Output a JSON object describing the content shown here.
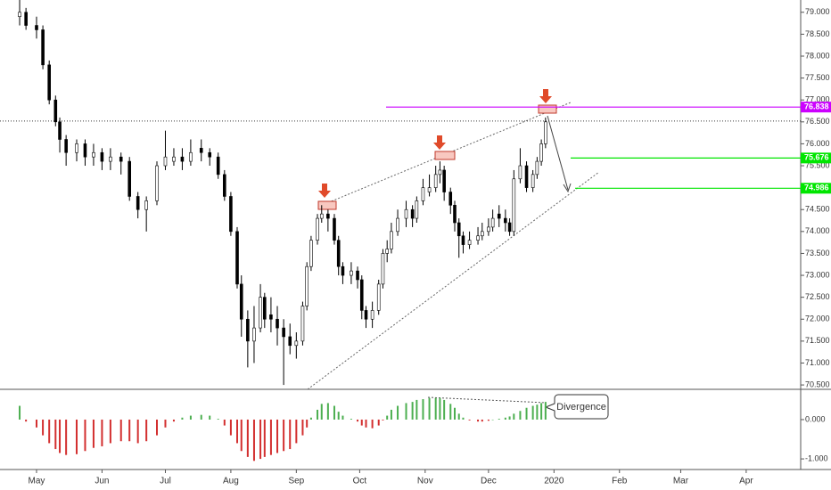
{
  "chart_data": [
    {
      "type": "candlestick",
      "x": [
        -8,
        -5,
        0,
        3,
        6,
        9,
        11,
        14,
        19,
        23,
        27,
        31,
        35,
        40,
        44,
        48,
        52,
        57,
        61,
        65,
        69,
        73,
        78,
        82,
        86,
        89,
        92,
        95,
        97,
        100,
        103,
        106,
        108,
        111,
        114,
        117,
        120,
        123,
        126,
        128,
        130,
        133,
        135,
        138,
        141,
        143,
        145,
        149,
        152,
        154,
        156,
        159,
        162,
        164,
        166,
        168,
        171,
        175,
        178,
        180,
        183,
        186,
        189,
        191,
        193,
        196,
        198,
        200,
        202,
        205,
        209,
        211,
        214,
        216,
        219,
        222,
        224,
        226,
        229,
        232,
        235,
        237,
        239,
        241
      ],
      "open": [
        78.9,
        79.0,
        78.7,
        78.6,
        77.8,
        77.0,
        76.5,
        76.1,
        75.8,
        76.0,
        75.7,
        75.8,
        75.6,
        75.7,
        75.6,
        74.8,
        74.5,
        74.7,
        75.5,
        75.6,
        75.7,
        75.6,
        75.9,
        75.8,
        75.7,
        75.3,
        74.8,
        74.0,
        72.8,
        72.0,
        71.5,
        71.8,
        72.5,
        72.1,
        72.0,
        71.8,
        71.6,
        71.4,
        71.5,
        72.3,
        73.2,
        73.8,
        74.3,
        74.4,
        74.3,
        73.8,
        73.2,
        73.0,
        73.1,
        72.9,
        72.2,
        72.0,
        72.2,
        72.8,
        73.5,
        73.6,
        74.0,
        74.3,
        74.5,
        74.3,
        74.7,
        74.9,
        75.0,
        75.3,
        75.4,
        74.9,
        74.6,
        74.2,
        73.9,
        73.7,
        73.8,
        73.9,
        74.0,
        74.1,
        74.4,
        74.3,
        74.2,
        74.0,
        75.2,
        75.5,
        75.0,
        75.3,
        75.6,
        76.0
      ],
      "high": [
        79.28,
        79.1,
        78.9,
        78.7,
        77.9,
        77.1,
        76.6,
        76.2,
        76.1,
        76.1,
        76.0,
        75.9,
        75.9,
        75.8,
        75.7,
        74.9,
        74.8,
        75.6,
        76.3,
        75.9,
        75.9,
        76.1,
        76.1,
        75.9,
        75.8,
        75.4,
        74.9,
        74.1,
        73.0,
        72.2,
        72.3,
        72.8,
        72.6,
        72.5,
        72.3,
        72.0,
        71.9,
        71.7,
        72.4,
        73.3,
        73.9,
        74.4,
        74.6,
        74.5,
        74.4,
        73.9,
        73.3,
        73.3,
        73.2,
        73.0,
        72.3,
        72.4,
        72.9,
        73.6,
        73.8,
        74.2,
        74.5,
        74.7,
        74.6,
        74.8,
        75.2,
        75.3,
        75.5,
        75.6,
        75.5,
        75.0,
        74.7,
        74.3,
        74.0,
        74.0,
        74.1,
        74.2,
        74.3,
        74.5,
        74.6,
        74.5,
        74.3,
        75.4,
        75.9,
        75.6,
        75.4,
        75.7,
        76.1,
        76.6
      ],
      "low": [
        78.7,
        78.6,
        78.4,
        77.7,
        76.9,
        76.4,
        75.8,
        75.5,
        75.6,
        75.5,
        75.5,
        75.4,
        75.4,
        75.3,
        74.7,
        74.3,
        74.0,
        74.6,
        75.4,
        75.5,
        75.4,
        75.5,
        75.6,
        75.5,
        75.2,
        74.7,
        73.9,
        72.7,
        71.6,
        70.9,
        71.0,
        71.7,
        71.8,
        71.7,
        71.4,
        70.5,
        71.2,
        71.1,
        71.4,
        72.2,
        73.1,
        73.7,
        74.2,
        74.0,
        73.7,
        73.0,
        72.8,
        72.8,
        72.7,
        72.0,
        71.8,
        71.8,
        72.1,
        72.7,
        73.3,
        73.5,
        73.9,
        74.1,
        74.1,
        74.2,
        74.6,
        74.8,
        74.9,
        75.1,
        74.7,
        74.4,
        74.0,
        73.4,
        73.5,
        73.6,
        73.7,
        73.8,
        73.9,
        74.0,
        74.1,
        74.0,
        73.9,
        73.9,
        75.1,
        74.9,
        74.9,
        75.2,
        75.5,
        75.9
      ],
      "close": [
        79.0,
        78.7,
        78.6,
        77.8,
        77.0,
        76.5,
        76.1,
        75.8,
        76.0,
        75.7,
        75.8,
        75.6,
        75.7,
        75.6,
        74.8,
        74.5,
        74.7,
        75.5,
        75.7,
        75.7,
        75.6,
        75.8,
        75.8,
        75.7,
        75.3,
        74.8,
        74.0,
        72.8,
        72.0,
        71.5,
        71.8,
        72.5,
        72.0,
        72.0,
        71.8,
        71.6,
        71.4,
        71.5,
        72.3,
        73.2,
        73.8,
        74.3,
        74.4,
        74.3,
        73.8,
        73.2,
        73.0,
        73.1,
        72.9,
        72.2,
        72.0,
        72.2,
        72.8,
        73.5,
        73.6,
        74.0,
        74.3,
        74.5,
        74.3,
        74.7,
        75.0,
        75.0,
        75.3,
        75.4,
        74.9,
        74.6,
        74.2,
        73.9,
        73.7,
        73.8,
        73.9,
        74.0,
        74.1,
        74.3,
        74.3,
        74.2,
        74.0,
        75.2,
        75.5,
        75.0,
        75.3,
        75.6,
        76.0,
        76.5
      ],
      "xlim": [
        -17.3,
        361.8
      ],
      "xticks": [
        {
          "value": 0,
          "label": "May"
        },
        {
          "value": 31,
          "label": "Jun"
        },
        {
          "value": 61,
          "label": "Jul"
        },
        {
          "value": 92,
          "label": "Aug"
        },
        {
          "value": 123,
          "label": "Sep"
        },
        {
          "value": 153,
          "label": "Oct"
        },
        {
          "value": 184,
          "label": "Nov"
        },
        {
          "value": 214,
          "label": "Dec"
        },
        {
          "value": 245,
          "label": "2020"
        },
        {
          "value": 276,
          "label": "Feb"
        },
        {
          "value": 305,
          "label": "Mar"
        },
        {
          "value": 336,
          "label": "Apr"
        }
      ],
      "ylim": [
        70.4,
        79.28
      ],
      "yticks": [
        {
          "value": 70.5,
          "label": "70.500"
        },
        {
          "value": 71,
          "label": "71.000"
        },
        {
          "value": 71.5,
          "label": "71.500"
        },
        {
          "value": 72,
          "label": "72.000"
        },
        {
          "value": 72.5,
          "label": "72.500"
        },
        {
          "value": 73,
          "label": "73.000"
        },
        {
          "value": 73.5,
          "label": "73.500"
        },
        {
          "value": 74,
          "label": "74.000"
        },
        {
          "value": 74.5,
          "label": "74.500"
        },
        {
          "value": 75,
          "label": "75.000"
        },
        {
          "value": 75.5,
          "label": "75.500"
        },
        {
          "value": 76,
          "label": "76.000"
        },
        {
          "value": 76.5,
          "label": "76.500"
        },
        {
          "value": 77,
          "label": "77.000"
        },
        {
          "value": 77.5,
          "label": "77.500"
        },
        {
          "value": 78,
          "label": "78.000"
        },
        {
          "value": 78.5,
          "label": "78.500"
        },
        {
          "value": 79,
          "label": "79.000"
        }
      ],
      "grid": false,
      "up_color": "#ffffff",
      "down_color": "#000000",
      "price_line": 76.52,
      "levels": [
        {
          "value": 76.838,
          "color": "#cc00ff"
        },
        {
          "value": 75.676,
          "color": "#00e600"
        },
        {
          "value": 74.986,
          "color": "#00e600"
        }
      ]
    },
    {
      "type": "histogram",
      "x": [
        -8,
        -5,
        0,
        3,
        6,
        9,
        11,
        14,
        19,
        23,
        27,
        31,
        35,
        40,
        44,
        48,
        52,
        57,
        61,
        65,
        69,
        73,
        78,
        82,
        86,
        89,
        92,
        95,
        97,
        100,
        103,
        106,
        108,
        111,
        114,
        117,
        120,
        123,
        126,
        128,
        130,
        133,
        135,
        138,
        141,
        143,
        145,
        149,
        152,
        154,
        156,
        159,
        162,
        164,
        166,
        168,
        171,
        175,
        178,
        180,
        183,
        186,
        189,
        191,
        193,
        196,
        198,
        200,
        202,
        205,
        209,
        211,
        214,
        216,
        219,
        222,
        224,
        226,
        229,
        232,
        235,
        237,
        239,
        241
      ],
      "values": [
        0.35,
        -0.05,
        -0.2,
        -0.4,
        -0.6,
        -0.75,
        -0.85,
        -0.9,
        -0.88,
        -0.8,
        -0.72,
        -0.68,
        -0.6,
        -0.55,
        -0.55,
        -0.6,
        -0.55,
        -0.4,
        -0.2,
        -0.05,
        0.05,
        0.1,
        0.12,
        0.1,
        0.02,
        -0.15,
        -0.4,
        -0.6,
        -0.8,
        -0.95,
        -1.05,
        -1.0,
        -0.95,
        -0.9,
        -0.85,
        -0.8,
        -0.75,
        -0.6,
        -0.4,
        -0.2,
        0.05,
        0.25,
        0.4,
        0.42,
        0.35,
        0.2,
        0.1,
        0.02,
        -0.05,
        -0.15,
        -0.2,
        -0.22,
        -0.15,
        -0.02,
        0.1,
        0.25,
        0.35,
        0.42,
        0.45,
        0.5,
        0.52,
        0.55,
        0.55,
        0.55,
        0.5,
        0.4,
        0.3,
        0.15,
        0.05,
        -0.02,
        -0.05,
        -0.05,
        -0.03,
        0.0,
        0.02,
        0.05,
        0.08,
        0.15,
        0.22,
        0.3,
        0.35,
        0.38,
        0.42,
        0.45
      ],
      "xlim": [
        -17.3,
        361.8
      ],
      "ylim": [
        -1.27,
        0.77
      ],
      "yticks": [
        {
          "value": 0,
          "label": "0.000"
        },
        {
          "value": -1,
          "label": "-1.000"
        }
      ],
      "up_color": "#4caf50",
      "down_color": "#d32f2f",
      "annotation": "Divergence"
    }
  ]
}
